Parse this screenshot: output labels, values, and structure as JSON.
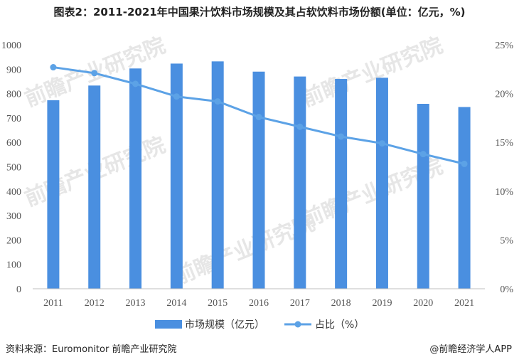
{
  "title": "图表2：2011-2021年中国果汁饮料市场规模及其占软饮料市场份额(单位：亿元，%)",
  "source": "资料来源：Euromonitor 前瞻产业研究院",
  "credit": "@前瞻经济学人APP",
  "watermark": "前瞻产业研究院",
  "colors": {
    "bar": "#4a8fe0",
    "line": "#5ca2e6"
  },
  "chart_data": {
    "type": "bar",
    "categories": [
      "2011",
      "2012",
      "2013",
      "2014",
      "2015",
      "2016",
      "2017",
      "2018",
      "2019",
      "2020",
      "2021"
    ],
    "series": [
      {
        "name": "市场规模（亿元）",
        "type": "bar",
        "axis": "left",
        "values": [
          773,
          833,
          903,
          923,
          932,
          890,
          870,
          860,
          865,
          758,
          745
        ]
      },
      {
        "name": "占比（%）",
        "type": "line",
        "axis": "right",
        "values": [
          22.7,
          22.1,
          21.0,
          19.7,
          19.2,
          17.6,
          16.6,
          15.6,
          14.9,
          13.8,
          12.8
        ]
      }
    ],
    "y_left": {
      "min": 0,
      "max": 1000,
      "ticks": [
        "0",
        "100",
        "200",
        "300",
        "400",
        "500",
        "600",
        "700",
        "800",
        "900",
        "1000"
      ]
    },
    "y_right": {
      "min": 0,
      "max": 25,
      "ticks": [
        "0%",
        "5%",
        "10%",
        "15%",
        "20%",
        "25%"
      ]
    },
    "legend_position": "bottom",
    "grid": false
  }
}
